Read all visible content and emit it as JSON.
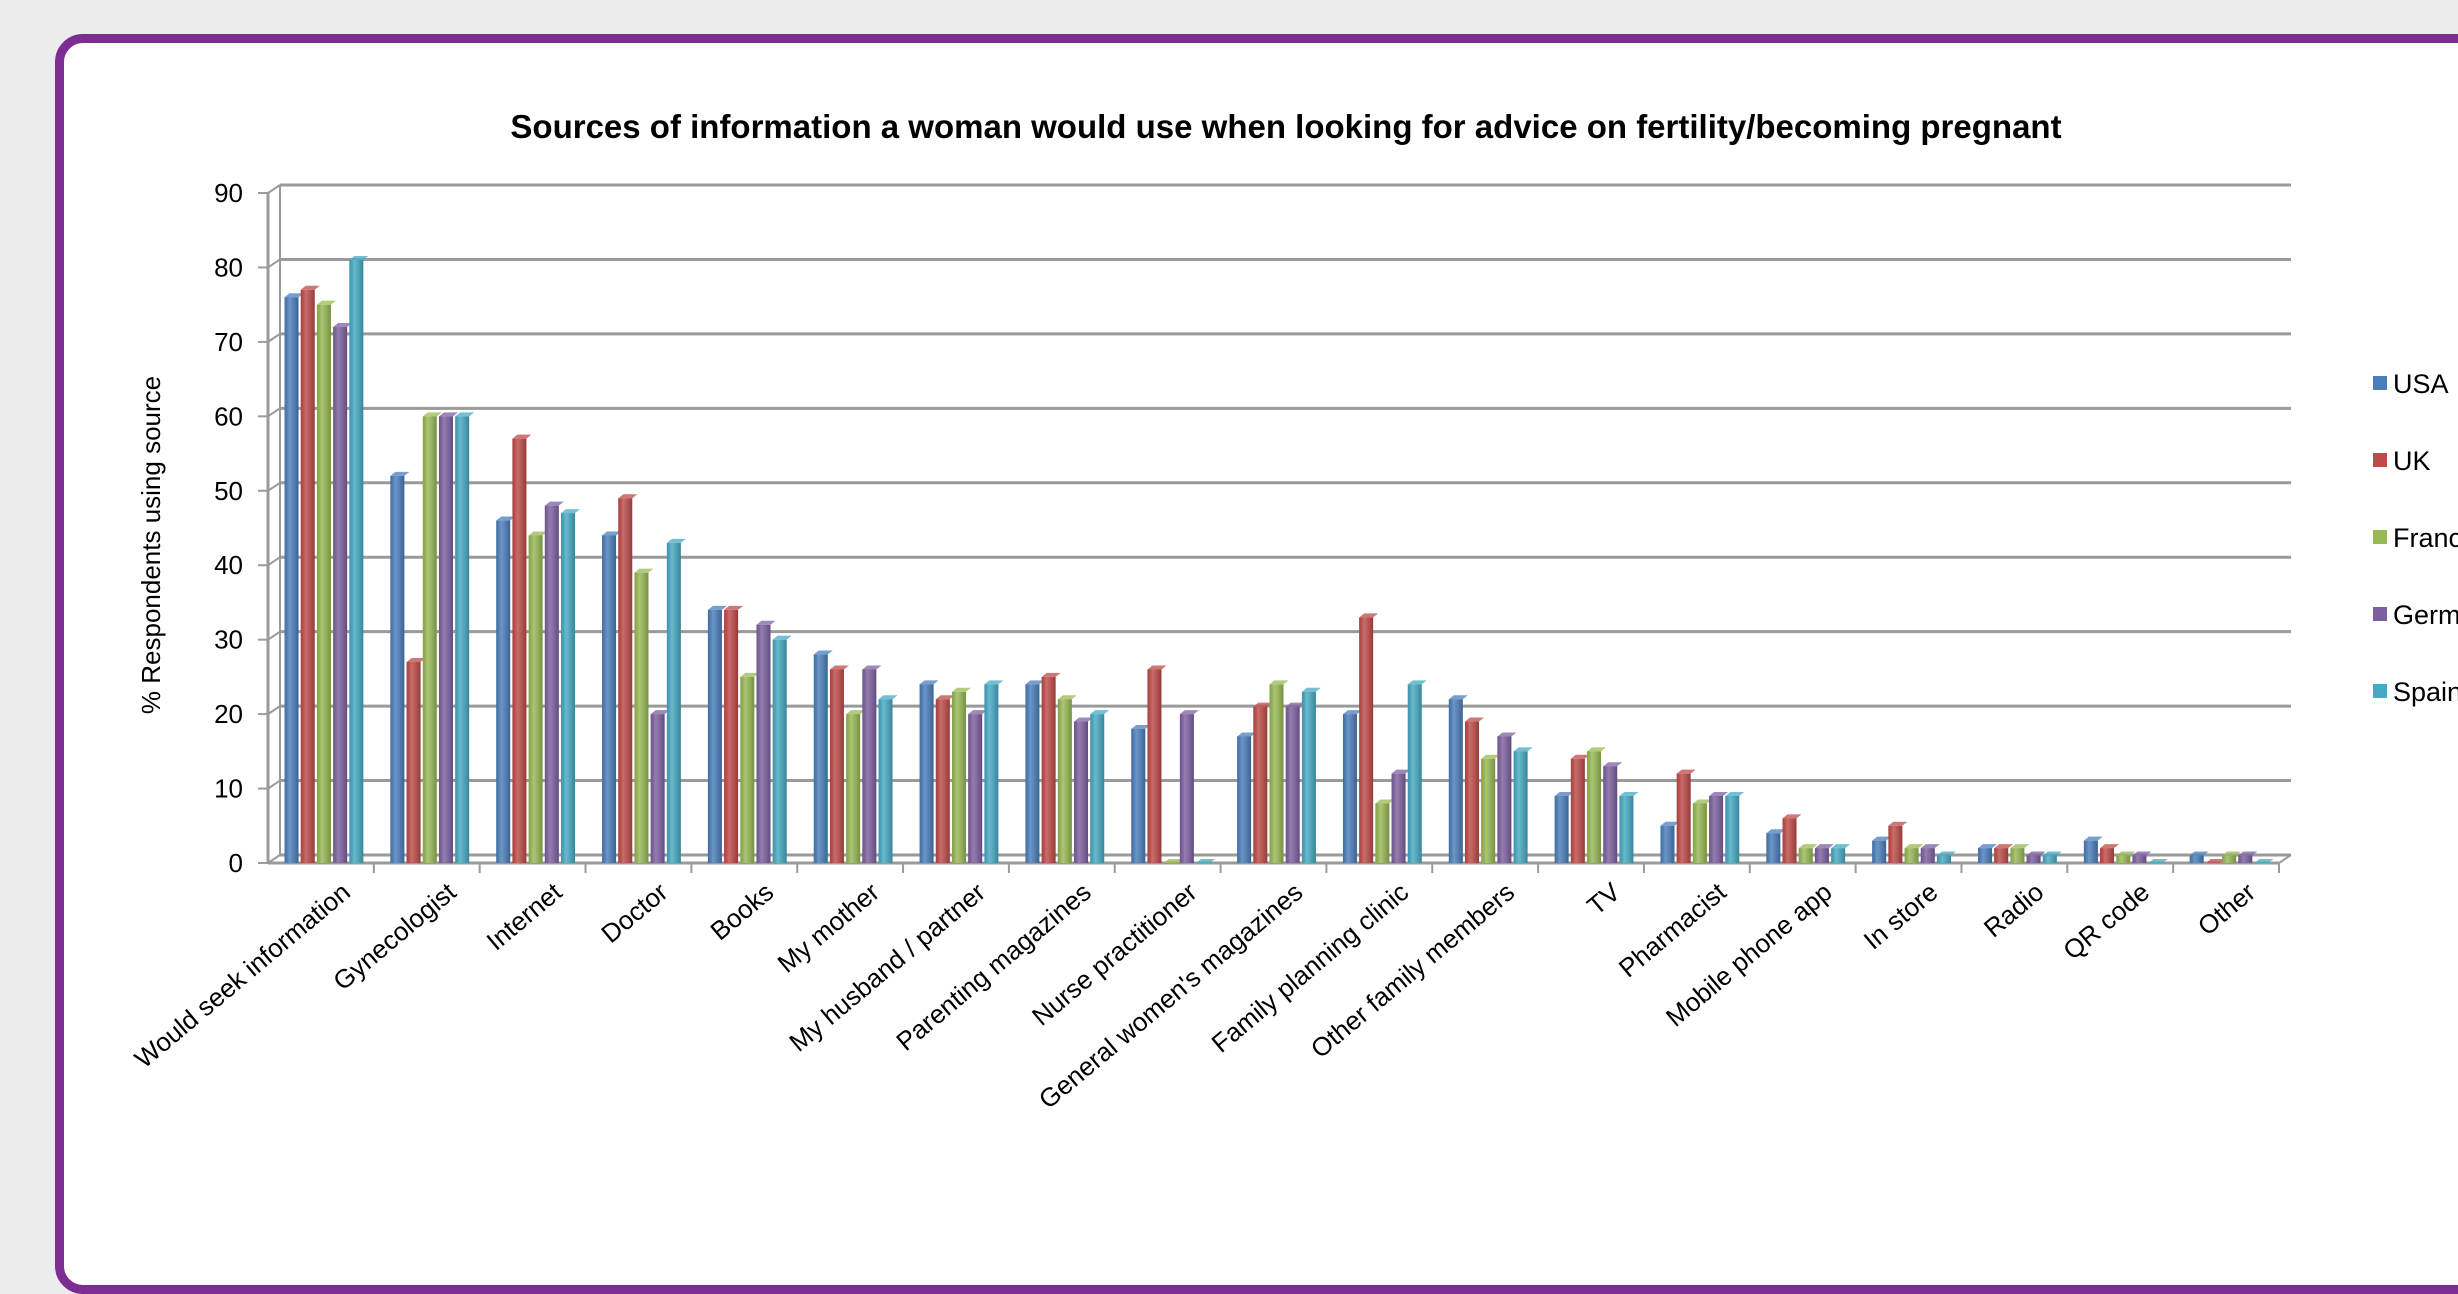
{
  "chart_data": {
    "type": "bar",
    "title": "Sources of information a woman would use when looking for advice on fertility/becoming pregnant",
    "ylabel": "% Respondents using source",
    "xlabel": "",
    "ylim": [
      0,
      90
    ],
    "yticks": [
      0,
      10,
      20,
      30,
      40,
      50,
      60,
      70,
      80,
      90
    ],
    "grid": true,
    "legend_position": "right",
    "categories": [
      "Would seek information",
      "Gynecologist",
      "Internet",
      "Doctor",
      "Books",
      "My mother",
      "My husband / partner",
      "Parenting magazines",
      "Nurse practitioner",
      "General women's magazines",
      "Family planning clinic",
      "Other family members",
      "TV",
      "Pharmacist",
      "Mobile phone app",
      "In store",
      "Radio",
      "QR code",
      "Other"
    ],
    "series": [
      {
        "name": "USA",
        "color": "#4a7ebb",
        "values": [
          76,
          52,
          46,
          44,
          34,
          28,
          24,
          24,
          18,
          17,
          20,
          22,
          9,
          5,
          4,
          3,
          2,
          3,
          1
        ]
      },
      {
        "name": "UK",
        "color": "#be4b48",
        "values": [
          77,
          27,
          57,
          49,
          34,
          26,
          22,
          25,
          26,
          21,
          33,
          19,
          14,
          12,
          6,
          5,
          2,
          2,
          0
        ]
      },
      {
        "name": "France",
        "color": "#98b954",
        "values": [
          75,
          60,
          44,
          39,
          25,
          20,
          23,
          22,
          0,
          24,
          8,
          14,
          15,
          8,
          2,
          2,
          2,
          1,
          1
        ]
      },
      {
        "name": "Germany",
        "color": "#7d60a0",
        "values": [
          72,
          60,
          48,
          20,
          32,
          26,
          20,
          19,
          20,
          21,
          12,
          17,
          13,
          9,
          2,
          2,
          1,
          1,
          1
        ]
      },
      {
        "name": "Spain",
        "color": "#46aac4",
        "values": [
          81,
          60,
          47,
          43,
          30,
          22,
          24,
          20,
          0,
          23,
          24,
          15,
          9,
          9,
          2,
          1,
          1,
          0,
          0
        ]
      }
    ]
  }
}
